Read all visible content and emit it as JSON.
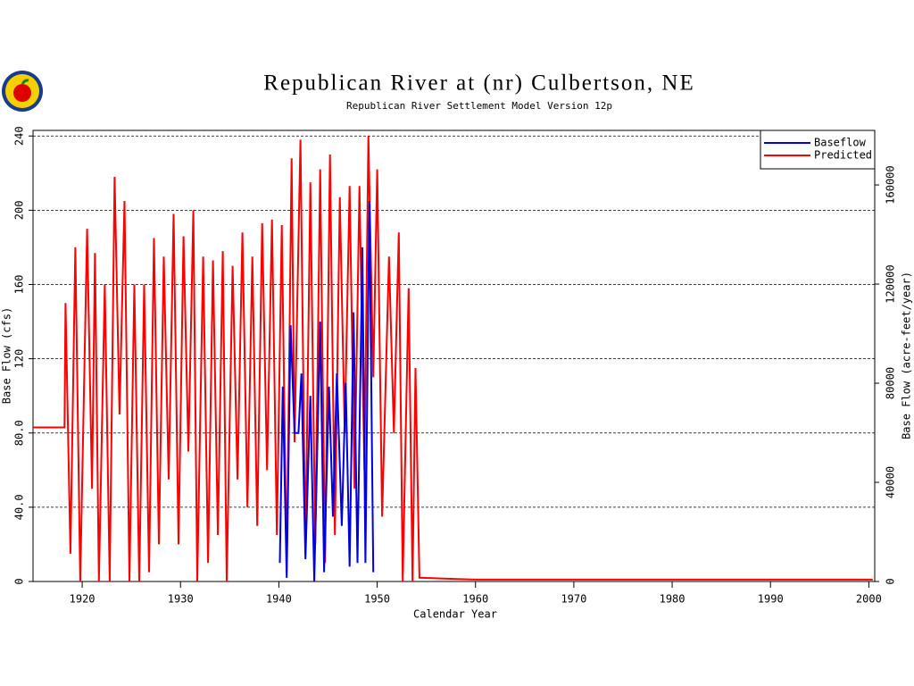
{
  "chart_data": {
    "type": "line",
    "title": "Republican River at (nr) Culbertson, NE",
    "subtitle": "Republican River Settlement Model Version 12p",
    "x_label": "Calendar Year",
    "y_label": "Base Flow (cfs)",
    "y2_label": "Base Flow (acre-feet/year)",
    "xlim": [
      1915,
      2000.6
    ],
    "xticks": [
      1920,
      1930,
      1940,
      1950,
      1960,
      1970,
      1980,
      1990,
      2000
    ],
    "ylim": [
      0,
      243
    ],
    "yticks": [
      0,
      {
        "value": 40,
        "label": "40.0"
      },
      {
        "value": 80,
        "label": "80.0"
      },
      120,
      160,
      200,
      240
    ],
    "y2lim": [
      0,
      182000
    ],
    "y2ticks": [
      0,
      40000,
      80000,
      120000,
      160000
    ],
    "grid": true,
    "legend": "upper right",
    "series": [
      {
        "name": "Baseflow",
        "color": "#0000e0",
        "x": [
          1940.1,
          1940.4,
          1940.8,
          1941.2,
          1941.6,
          1942.0,
          1942.3,
          1942.7,
          1943.2,
          1943.6,
          1944.2,
          1944.6,
          1945.1,
          1945.5,
          1945.9,
          1946.4,
          1946.8,
          1947.2,
          1947.6,
          1948.0,
          1948.5,
          1948.8,
          1949.2,
          1949.6
        ],
        "values": [
          10,
          105,
          2,
          138,
          80,
          80,
          112,
          12,
          100,
          0,
          140,
          5,
          105,
          35,
          112,
          30,
          107,
          8,
          145,
          10,
          180,
          10,
          205,
          5
        ]
      },
      {
        "name": "Predicted",
        "color": "#ff0000",
        "x": [
          1915,
          1918.2,
          1918.3,
          1918.8,
          1919.3,
          1919.8,
          1920.5,
          1921,
          1921.3,
          1921.7,
          1922.3,
          1922.8,
          1923.3,
          1923.8,
          1924.3,
          1924.8,
          1925.3,
          1925.8,
          1926.3,
          1926.8,
          1927.3,
          1927.8,
          1928.3,
          1928.8,
          1929.3,
          1929.8,
          1930.3,
          1930.8,
          1931.3,
          1931.7,
          1932.3,
          1932.8,
          1933.3,
          1933.8,
          1934.3,
          1934.7,
          1935.3,
          1935.8,
          1936.3,
          1936.8,
          1937.3,
          1937.8,
          1938.3,
          1938.8,
          1939.3,
          1939.8,
          1940.3,
          1940.8,
          1941.3,
          1941.6,
          1942.2,
          1942.7,
          1943.2,
          1943.7,
          1944.2,
          1944.7,
          1945.2,
          1945.7,
          1946.2,
          1946.7,
          1947.2,
          1947.7,
          1948.2,
          1948.7,
          1949.1,
          1949.6,
          1950,
          1950.5,
          1951.2,
          1951.7,
          1952.2,
          1952.6,
          1953.2,
          1953.6,
          1953.9,
          1954.3,
          1960,
          1970,
          1980,
          1990,
          2000.4
        ],
        "values": [
          83,
          83,
          150,
          15,
          180,
          0,
          190,
          50,
          177,
          0,
          160,
          0,
          218,
          90,
          205,
          0,
          160,
          0,
          160,
          5,
          185,
          20,
          175,
          55,
          198,
          20,
          186,
          70,
          200,
          0,
          175,
          10,
          173,
          25,
          178,
          0,
          170,
          55,
          188,
          40,
          175,
          30,
          193,
          60,
          195,
          25,
          192,
          5,
          228,
          75,
          238,
          15,
          215,
          20,
          222,
          10,
          230,
          25,
          207,
          80,
          213,
          50,
          213,
          60,
          240,
          110,
          222,
          35,
          175,
          80,
          188,
          0,
          158,
          0,
          115,
          2,
          1,
          1,
          1,
          1,
          1
        ]
      }
    ]
  }
}
